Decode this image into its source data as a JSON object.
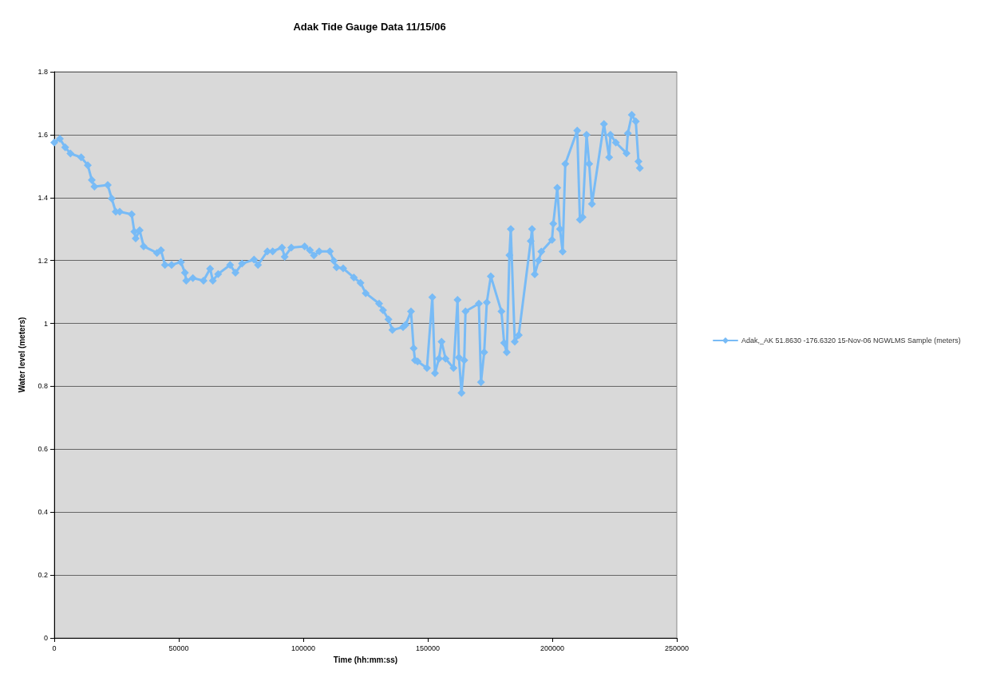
{
  "chart_data": {
    "type": "line",
    "title": "Adak Tide Gauge Data 11/15/06",
    "xlabel": "Time (hh:mm:ss)",
    "ylabel": "Water level (meters)",
    "xlim": [
      0,
      250000
    ],
    "xticks": [
      0,
      50000,
      100000,
      150000,
      200000,
      250000
    ],
    "ylim": [
      0,
      1.8
    ],
    "yticks": [
      0,
      0.2,
      0.4,
      0.6,
      0.8,
      1,
      1.2,
      1.4,
      1.6,
      1.8
    ],
    "grid": "y",
    "legend": "right",
    "marker": "diamond",
    "line_style": "solid",
    "series": [
      {
        "name": "Adak,_AK 51.8630 -176.6320 15-Nov-06 NGWLMS Sample (meters)",
        "color": "#78bbf6",
        "x": [
          0,
          2240,
          4380,
          6500,
          10800,
          13460,
          15060,
          16130,
          21470,
          23080,
          24680,
          26280,
          31090,
          32150,
          32690,
          34290,
          35900,
          41250,
          42850,
          44450,
          47110,
          50860,
          52470,
          52980,
          55670,
          59930,
          62590,
          63680,
          65800,
          70610,
          72750,
          75410,
          80220,
          81820,
          85570,
          87720,
          91440,
          92530,
          95190,
          100540,
          102660,
          104260,
          106400,
          110670,
          112270,
          113360,
          116020,
          120290,
          122970,
          125090,
          130440,
          132040,
          134190,
          135790,
          140060,
          141120,
          143260,
          144330,
          144870,
          145920,
          149670,
          151820,
          152880,
          154480,
          155540,
          157140,
          160340,
          161950,
          162490,
          163550,
          164640,
          165150,
          170510,
          171370,
          172650,
          173710,
          175310,
          179580,
          180660,
          181720,
          182780,
          183330,
          184930,
          186530,
          191340,
          191870,
          192940,
          194540,
          195600,
          199890,
          200400,
          202010,
          203080,
          204160,
          205220,
          210020,
          211090,
          212170,
          213770,
          214830,
          215920,
          220730,
          222840,
          223380,
          225530,
          229800,
          230340,
          231940,
          233540,
          234610,
          235150
        ],
        "values": [
          1.575,
          1.587,
          1.56,
          1.54,
          1.528,
          1.503,
          1.456,
          1.435,
          1.44,
          1.397,
          1.355,
          1.355,
          1.347,
          1.292,
          1.27,
          1.296,
          1.245,
          1.224,
          1.233,
          1.186,
          1.186,
          1.195,
          1.161,
          1.136,
          1.144,
          1.136,
          1.174,
          1.136,
          1.157,
          1.186,
          1.161,
          1.19,
          1.203,
          1.186,
          1.229,
          1.229,
          1.241,
          1.212,
          1.241,
          1.245,
          1.233,
          1.216,
          1.229,
          1.229,
          1.199,
          1.178,
          1.175,
          1.146,
          1.129,
          1.096,
          1.063,
          1.042,
          1.013,
          0.979,
          0.988,
          0.996,
          1.038,
          0.921,
          0.883,
          0.879,
          0.858,
          1.083,
          0.842,
          0.888,
          0.942,
          0.888,
          0.858,
          1.075,
          0.892,
          0.779,
          0.883,
          1.038,
          1.063,
          0.813,
          0.908,
          1.067,
          1.15,
          1.038,
          0.938,
          0.908,
          1.217,
          1.3,
          0.942,
          0.963,
          1.262,
          1.3,
          1.156,
          1.2,
          1.228,
          1.266,
          1.317,
          1.431,
          1.3,
          1.228,
          1.507,
          1.613,
          1.33,
          1.338,
          1.6,
          1.507,
          1.38,
          1.634,
          1.528,
          1.6,
          1.575,
          1.541,
          1.604,
          1.663,
          1.642,
          1.515,
          1.494
        ]
      }
    ]
  }
}
